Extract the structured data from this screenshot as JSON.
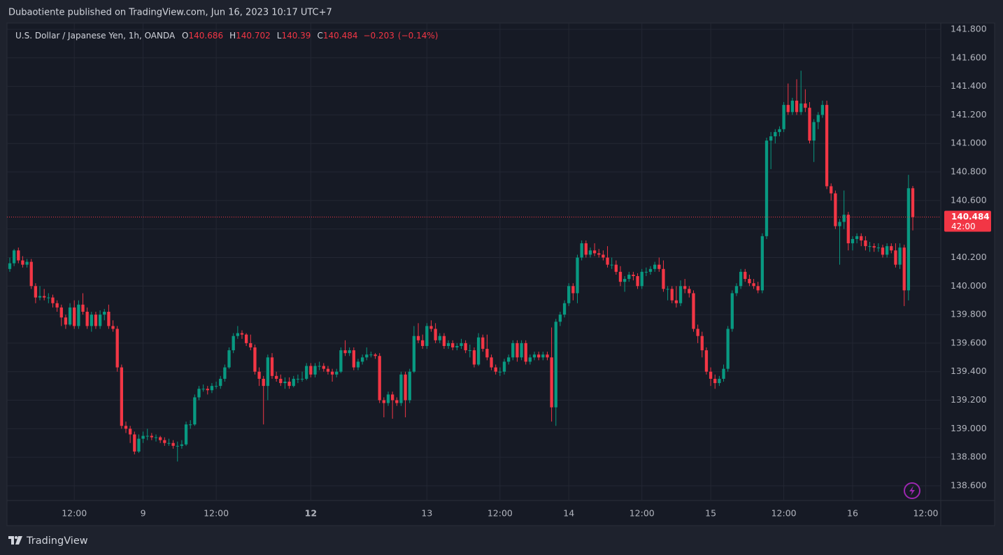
{
  "header": {
    "text": "Dubaotiente published on TradingView.com, Jun 16, 2023 10:17 UTC+7"
  },
  "footer": {
    "brand": "TradingView"
  },
  "chart_data": {
    "type": "candlestick",
    "title": "U.S. Dollar / Japanese Yen, 1h, OANDA",
    "ohlc_legend": [
      {
        "label": "O",
        "value": 140.686
      },
      {
        "label": "H",
        "value": 140.702
      },
      {
        "label": "L",
        "value": 140.39
      },
      {
        "label": "C",
        "value": 140.484
      }
    ],
    "change": {
      "value": -0.203,
      "label": "−0.203"
    },
    "change_percent": {
      "value": -0.14,
      "label": "(−0.14%)"
    },
    "up_color": "#089981",
    "down_color": "#f23645",
    "grid": true,
    "last_price": 140.484,
    "countdown": "42:00",
    "ylim": [
      138.497,
      141.839
    ],
    "yticks": [
      {
        "value": 138.6,
        "label": "138.600"
      },
      {
        "value": 138.8,
        "label": "138.800"
      },
      {
        "value": 139,
        "label": "139.000"
      },
      {
        "value": 139.2,
        "label": "139.200"
      },
      {
        "value": 139.4,
        "label": "139.400"
      },
      {
        "value": 139.6,
        "label": "139.600"
      },
      {
        "value": 139.8,
        "label": "139.800"
      },
      {
        "value": 140,
        "label": "140.000"
      },
      {
        "value": 140.2,
        "label": "140.200"
      },
      {
        "value": 140.4,
        "label": "140.400"
      },
      {
        "value": 140.6,
        "label": "140.600"
      },
      {
        "value": 140.8,
        "label": "140.800"
      },
      {
        "value": 141,
        "label": "141.000"
      },
      {
        "value": 141.2,
        "label": "141.200"
      },
      {
        "value": 141.4,
        "label": "141.400"
      },
      {
        "value": 141.6,
        "label": "141.600"
      },
      {
        "value": 141.8,
        "label": "141.800"
      }
    ],
    "xlim": [
      -0.65,
      216.5
    ],
    "xticks": [
      {
        "value": 15,
        "label": "12:00"
      },
      {
        "value": 31,
        "label": "9"
      },
      {
        "value": 48,
        "label": "12:00"
      },
      {
        "value": 70,
        "label": "12",
        "bold": true
      },
      {
        "value": 97,
        "label": "13"
      },
      {
        "value": 114,
        "label": "12:00"
      },
      {
        "value": 130,
        "label": "14"
      },
      {
        "value": 147,
        "label": "12:00"
      },
      {
        "value": 163,
        "label": "15"
      },
      {
        "value": 180,
        "label": "12:00"
      },
      {
        "value": 196,
        "label": "16"
      },
      {
        "value": 213,
        "label": "12:00"
      }
    ],
    "open": [
      140.12,
      140.16,
      140.25,
      140.18,
      140.15,
      140.17,
      140.0,
      139.92,
      139.93,
      139.92,
      139.92,
      139.88,
      139.85,
      139.78,
      139.73,
      139.85,
      139.72,
      139.87,
      139.82,
      139.72,
      139.8,
      139.72,
      139.8,
      139.82,
      139.72,
      139.7,
      139.43,
      139.02,
      139.0,
      138.96,
      138.84,
      138.93,
      138.95,
      138.95,
      138.94,
      138.94,
      138.92,
      138.9,
      138.9,
      138.88,
      138.88,
      138.89,
      139.03,
      139.03,
      139.22,
      139.28,
      139.28,
      139.27,
      139.3,
      139.3,
      139.35,
      139.43,
      139.55,
      139.65,
      139.67,
      139.66,
      139.6,
      139.57,
      139.4,
      139.35,
      139.3,
      139.5,
      139.37,
      139.35,
      139.32,
      139.33,
      139.3,
      139.35,
      139.35,
      139.35,
      139.44,
      139.38,
      139.44,
      139.44,
      139.42,
      139.4,
      139.38,
      139.4,
      139.55,
      139.53,
      139.55,
      139.43,
      139.47,
      139.5,
      139.52,
      139.52,
      139.51,
      139.2,
      139.18,
      139.24,
      139.2,
      139.18,
      139.38,
      139.2,
      139.4,
      139.65,
      139.62,
      139.58,
      139.72,
      139.7,
      139.62,
      139.65,
      139.58,
      139.6,
      139.57,
      139.58,
      139.6,
      139.55,
      139.55,
      139.45,
      139.64,
      139.56,
      139.5,
      139.43,
      139.4,
      139.4,
      139.47,
      139.5,
      139.6,
      139.5,
      139.6,
      139.47,
      139.5,
      139.52,
      139.5,
      139.52,
      139.5,
      139.15,
      139.75,
      139.8,
      139.88,
      140.0,
      139.95,
      140.2,
      140.3,
      140.22,
      140.25,
      140.23,
      140.22,
      140.2,
      140.15,
      140.15,
      140.1,
      140.03,
      140.05,
      140.08,
      140.07,
      140.0,
      140.1,
      140.1,
      140.12,
      140.15,
      140.12,
      139.98,
      139.98,
      139.9,
      139.88,
      140.0,
      139.98,
      139.95,
      139.7,
      139.65,
      139.55,
      139.4,
      139.35,
      139.32,
      139.35,
      139.42,
      139.7,
      139.95,
      140.0,
      140.1,
      140.05,
      140.02,
      140.0,
      139.97,
      140.35,
      141.02,
      141.05,
      141.08,
      141.1,
      141.27,
      141.22,
      141.3,
      141.22,
      141.28,
      141.25,
      141.02,
      141.15,
      141.2,
      141.27,
      140.7,
      140.65,
      140.42,
      140.45,
      140.5,
      140.3,
      140.33,
      140.35,
      140.32,
      140.28,
      140.28,
      140.27,
      140.27,
      140.22,
      140.28,
      140.25,
      140.15,
      140.27,
      139.97,
      140.686
    ],
    "high": [
      140.2,
      140.26,
      140.27,
      140.21,
      140.19,
      140.19,
      140.02,
      140.0,
      139.98,
      139.95,
      139.94,
      139.9,
      139.87,
      139.8,
      139.88,
      139.9,
      139.9,
      139.95,
      139.85,
      139.82,
      139.82,
      139.83,
      139.84,
      139.87,
      139.76,
      139.72,
      139.45,
      139.05,
      139.02,
      138.98,
      138.96,
      138.98,
      139.0,
      138.97,
      138.96,
      138.95,
      138.94,
      138.93,
      138.92,
      138.91,
      138.92,
      139.05,
      139.06,
      139.24,
      139.3,
      139.31,
      139.3,
      139.32,
      139.33,
      139.37,
      139.45,
      139.57,
      139.67,
      139.72,
      139.69,
      139.67,
      139.66,
      139.59,
      139.43,
      139.37,
      139.52,
      139.53,
      139.4,
      139.38,
      139.36,
      139.36,
      139.37,
      139.38,
      139.4,
      139.46,
      139.46,
      139.46,
      139.47,
      139.46,
      139.44,
      139.42,
      139.42,
      139.57,
      139.62,
      139.57,
      139.57,
      139.49,
      139.52,
      139.57,
      139.54,
      139.53,
      139.53,
      139.22,
      139.26,
      139.26,
      139.22,
      139.4,
      139.4,
      139.42,
      139.72,
      139.74,
      139.66,
      139.74,
      139.76,
      139.74,
      139.67,
      139.67,
      139.62,
      139.62,
      139.6,
      139.63,
      139.62,
      139.59,
      139.57,
      139.67,
      139.66,
      139.66,
      139.52,
      139.45,
      139.43,
      139.49,
      139.52,
      139.62,
      139.62,
      139.62,
      139.62,
      139.52,
      139.54,
      139.54,
      139.54,
      139.54,
      139.71,
      139.77,
      139.82,
      139.9,
      140.02,
      140.02,
      140.22,
      140.32,
      140.32,
      140.27,
      140.3,
      140.26,
      140.25,
      140.28,
      140.2,
      140.18,
      140.14,
      140.07,
      140.1,
      140.1,
      140.09,
      140.12,
      140.13,
      140.14,
      140.17,
      140.2,
      140.18,
      140.0,
      140.0,
      140.0,
      140.04,
      140.05,
      140.0,
      139.97,
      139.73,
      139.68,
      139.57,
      139.43,
      139.38,
      139.37,
      139.45,
      139.72,
      139.97,
      140.02,
      140.12,
      140.12,
      140.08,
      140.05,
      140.03,
      140.37,
      141.04,
      141.08,
      141.1,
      141.12,
      141.29,
      141.42,
      141.32,
      141.45,
      141.51,
      141.38,
      141.29,
      141.17,
      141.22,
      141.3,
      141.3,
      140.72,
      140.67,
      140.47,
      140.67,
      140.52,
      140.35,
      140.37,
      140.37,
      140.35,
      140.31,
      140.3,
      140.3,
      140.29,
      140.3,
      140.3,
      140.3,
      140.3,
      140.29,
      140.78,
      140.702
    ],
    "low": [
      140.1,
      140.14,
      140.16,
      140.13,
      140.13,
      139.98,
      139.88,
      139.9,
      139.9,
      139.88,
      139.85,
      139.82,
      139.72,
      139.7,
      139.72,
      139.7,
      139.7,
      139.8,
      139.7,
      139.68,
      139.7,
      139.7,
      139.76,
      139.7,
      139.68,
      139.4,
      139.0,
      138.97,
      138.9,
      138.82,
      138.83,
      138.9,
      138.92,
      138.92,
      138.91,
      138.9,
      138.88,
      138.88,
      138.86,
      138.77,
      138.86,
      138.88,
      139.0,
      139.02,
      139.2,
      139.26,
      139.24,
      139.25,
      139.28,
      139.28,
      139.33,
      139.42,
      139.53,
      139.63,
      139.63,
      139.58,
      139.55,
      139.38,
      139.3,
      139.03,
      139.2,
      139.35,
      139.33,
      139.3,
      139.28,
      139.28,
      139.29,
      139.32,
      139.33,
      139.34,
      139.36,
      139.36,
      139.41,
      139.4,
      139.38,
      139.33,
      139.36,
      139.39,
      139.51,
      139.51,
      139.41,
      139.41,
      139.45,
      139.48,
      139.5,
      139.49,
      139.18,
      139.08,
      139.16,
      139.07,
      139.16,
      139.16,
      139.08,
      139.18,
      139.39,
      139.6,
      139.56,
      139.56,
      139.68,
      139.6,
      139.6,
      139.56,
      139.56,
      139.55,
      139.55,
      139.56,
      139.53,
      139.5,
      139.43,
      139.44,
      139.54,
      139.48,
      139.41,
      139.38,
      139.37,
      139.38,
      139.45,
      139.48,
      139.47,
      139.48,
      139.45,
      139.45,
      139.48,
      139.48,
      139.48,
      139.48,
      139.05,
      139.02,
      139.72,
      139.78,
      139.86,
      139.9,
      139.88,
      140.18,
      140.2,
      140.2,
      140.21,
      140.2,
      140.18,
      140.13,
      140.12,
      140.08,
      140.0,
      139.96,
      140.03,
      140.04,
      139.98,
      139.98,
      140.07,
      140.08,
      140.1,
      140.1,
      139.96,
      139.9,
      139.88,
      139.85,
      139.86,
      139.95,
      139.92,
      139.68,
      139.6,
      139.5,
      139.38,
      139.3,
      139.28,
      139.3,
      139.33,
      139.4,
      139.68,
      139.93,
      139.98,
      140.03,
      140.0,
      139.98,
      139.95,
      139.95,
      140.33,
      140.82,
      141.0,
      141.05,
      141.08,
      141.2,
      141.2,
      141.2,
      141.2,
      141.22,
      141.0,
      140.87,
      141.1,
      141.18,
      140.68,
      140.6,
      140.4,
      140.15,
      140.4,
      140.25,
      140.25,
      140.3,
      140.28,
      140.25,
      140.24,
      140.24,
      140.24,
      140.2,
      140.2,
      140.23,
      140.13,
      140.12,
      139.86,
      139.9,
      140.39
    ],
    "close": [
      140.16,
      140.25,
      140.18,
      140.15,
      140.17,
      140.0,
      139.92,
      139.93,
      139.92,
      139.92,
      139.88,
      139.85,
      139.78,
      139.73,
      139.85,
      139.72,
      139.87,
      139.82,
      139.72,
      139.8,
      139.72,
      139.8,
      139.82,
      139.72,
      139.7,
      139.43,
      139.02,
      139.0,
      138.96,
      138.84,
      138.93,
      138.95,
      138.95,
      138.94,
      138.94,
      138.92,
      138.9,
      138.9,
      138.88,
      138.88,
      138.89,
      139.03,
      139.03,
      139.22,
      139.28,
      139.28,
      139.27,
      139.3,
      139.3,
      139.35,
      139.43,
      139.55,
      139.65,
      139.67,
      139.66,
      139.6,
      139.57,
      139.4,
      139.35,
      139.3,
      139.5,
      139.37,
      139.35,
      139.32,
      139.33,
      139.3,
      139.35,
      139.35,
      139.35,
      139.44,
      139.38,
      139.44,
      139.44,
      139.42,
      139.4,
      139.38,
      139.4,
      139.55,
      139.53,
      139.55,
      139.43,
      139.47,
      139.5,
      139.52,
      139.52,
      139.51,
      139.2,
      139.18,
      139.24,
      139.2,
      139.18,
      139.38,
      139.2,
      139.4,
      139.65,
      139.62,
      139.58,
      139.72,
      139.7,
      139.62,
      139.65,
      139.58,
      139.6,
      139.57,
      139.58,
      139.6,
      139.55,
      139.55,
      139.45,
      139.64,
      139.56,
      139.5,
      139.43,
      139.4,
      139.4,
      139.47,
      139.5,
      139.6,
      139.5,
      139.6,
      139.47,
      139.5,
      139.52,
      139.5,
      139.52,
      139.5,
      139.15,
      139.75,
      139.8,
      139.88,
      140.0,
      139.95,
      140.2,
      140.3,
      140.22,
      140.25,
      140.23,
      140.22,
      140.2,
      140.15,
      140.15,
      140.1,
      140.03,
      140.05,
      140.08,
      140.07,
      140.0,
      140.1,
      140.1,
      140.12,
      140.15,
      140.12,
      139.98,
      139.98,
      139.9,
      139.88,
      140.0,
      139.98,
      139.95,
      139.7,
      139.65,
      139.55,
      139.4,
      139.35,
      139.32,
      139.35,
      139.42,
      139.7,
      139.95,
      140.0,
      140.1,
      140.05,
      140.02,
      140.0,
      139.97,
      140.35,
      141.02,
      141.05,
      141.08,
      141.1,
      141.27,
      141.22,
      141.3,
      141.22,
      141.28,
      141.25,
      141.02,
      141.15,
      141.2,
      141.27,
      140.7,
      140.65,
      140.42,
      140.45,
      140.5,
      140.3,
      140.33,
      140.35,
      140.32,
      140.28,
      140.28,
      140.27,
      140.27,
      140.22,
      140.28,
      140.25,
      140.15,
      140.27,
      139.97,
      140.686,
      140.484
    ]
  }
}
